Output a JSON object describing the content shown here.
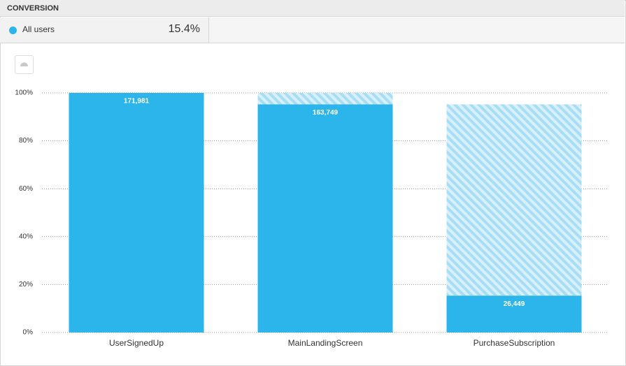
{
  "header": {
    "title": "CONVERSION",
    "series_name": "All users",
    "overall_conversion": "15.4%"
  },
  "chart_data": {
    "type": "funnel",
    "categories": [
      "UserSignedUp",
      "MainLandingScreen",
      "PurchaseSubscription"
    ],
    "values": [
      100,
      95.21,
      15.38
    ],
    "users": [
      {
        "value": 171981,
        "label": "171,981"
      },
      {
        "value": 163749,
        "label": "163,749"
      },
      {
        "value": 26449,
        "label": "26,449"
      }
    ],
    "color": "#2bb5ea",
    "ylim": [
      0,
      100
    ],
    "yticks": [
      {
        "value": 0,
        "label": "0%"
      },
      {
        "value": 20,
        "label": "20%"
      },
      {
        "value": 40,
        "label": "40%"
      },
      {
        "value": 60,
        "label": "60%"
      },
      {
        "value": 80,
        "label": "80%"
      },
      {
        "value": 100,
        "label": "100%"
      }
    ],
    "grid": true
  }
}
